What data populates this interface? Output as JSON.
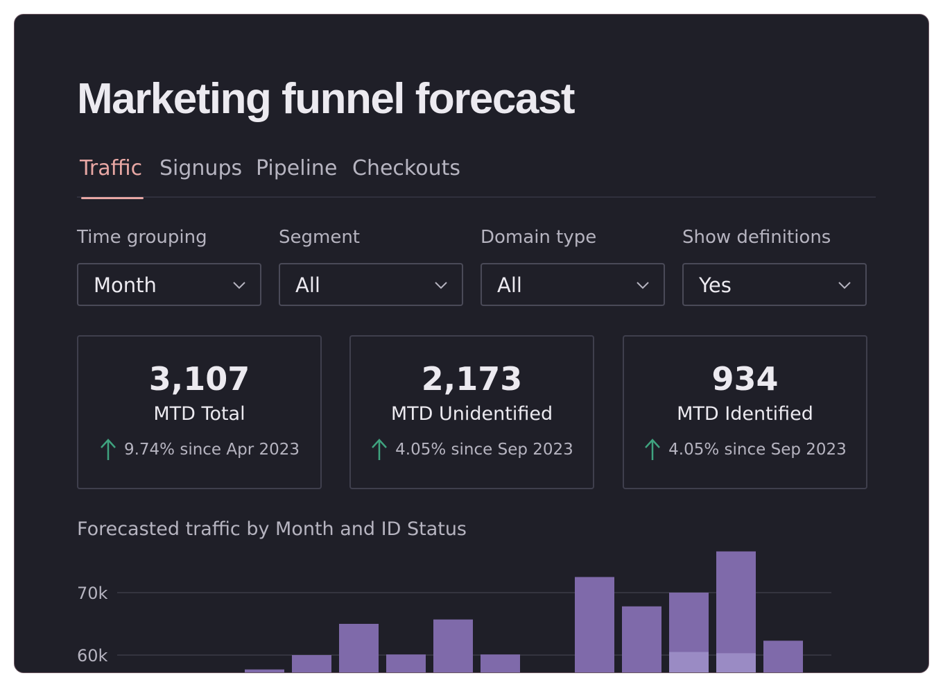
{
  "page": {
    "title": "Marketing funnel forecast"
  },
  "tabs": [
    {
      "label": "Traffic",
      "active": true
    },
    {
      "label": "Signups",
      "active": false
    },
    {
      "label": "Pipeline",
      "active": false
    },
    {
      "label": "Checkouts",
      "active": false
    }
  ],
  "filters": [
    {
      "label": "Time grouping",
      "value": "Month"
    },
    {
      "label": "Segment",
      "value": "All"
    },
    {
      "label": "Domain type",
      "value": "All"
    },
    {
      "label": "Show definitions",
      "value": "Yes"
    }
  ],
  "kpis": [
    {
      "value": "3,107",
      "label": "MTD Total",
      "delta": "9.74% since Apr 2023"
    },
    {
      "value": "2,173",
      "label": "MTD Unidentified",
      "delta": "4.05% since Sep 2023"
    },
    {
      "value": "934",
      "label": "MTD Identified",
      "delta": "4.05% since Sep 2023"
    }
  ],
  "colors": {
    "background": "#1f1f28",
    "accent": "#e8a7a4",
    "positive": "#3fa37f",
    "bar_primary": "#7f6aaa",
    "bar_secondary": "#9a8bc4"
  },
  "icons": {
    "dropdown": "chevron-down-icon",
    "delta": "arrow-up-icon"
  },
  "chart_data": {
    "type": "bar",
    "title": "Forecasted traffic by Month and ID Status",
    "ylim_visible": [
      57500,
      75000
    ],
    "y_ticks": [
      {
        "value": 70000,
        "label": "70k"
      },
      {
        "value": 60000,
        "label": "60k"
      }
    ],
    "grid": true,
    "series": [
      {
        "values": [
          null,
          null,
          57700,
          60000,
          65000,
          60100,
          65700,
          60100,
          null,
          72500,
          67800,
          70000,
          76600,
          62300
        ]
      },
      {
        "values": [
          null,
          null,
          null,
          null,
          null,
          null,
          null,
          null,
          null,
          null,
          null,
          60500,
          60300,
          null
        ]
      }
    ]
  }
}
